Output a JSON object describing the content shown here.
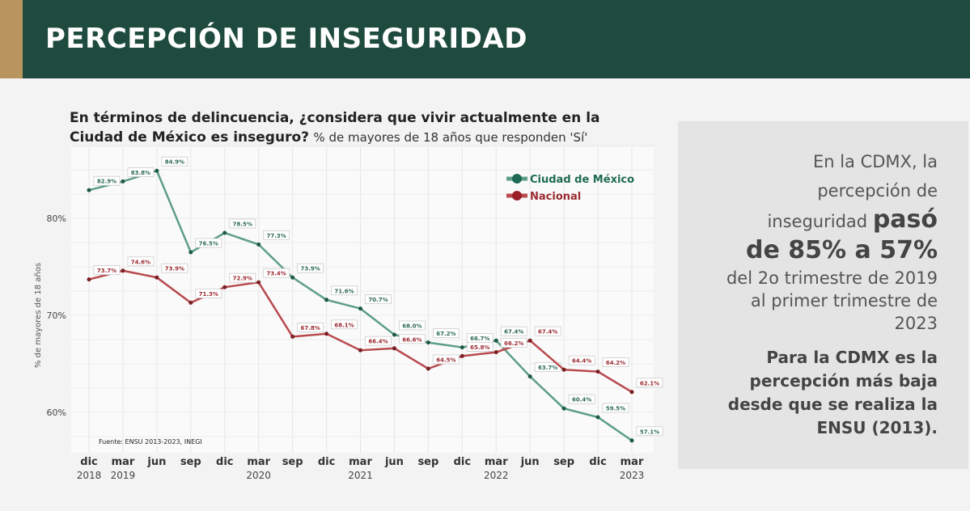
{
  "header": {
    "title": "PERCEPCIÓN DE INSEGURIDAD"
  },
  "question": {
    "bold": "En términos de delincuencia, ¿considera que vivir actualmente en la Ciudad de México es inseguro?",
    "subtitle": "% de mayores de 18 años que responden 'Sí'"
  },
  "chart_data": {
    "type": "line",
    "ylabel": "% de mayores de 18 años",
    "categories": [
      "dic",
      "mar",
      "jun",
      "sep",
      "dic",
      "mar",
      "sep",
      "dic",
      "mar",
      "jun",
      "sep",
      "dic",
      "mar",
      "jun",
      "sep",
      "dic",
      "mar"
    ],
    "years": [
      "2018",
      "2019",
      "",
      "",
      "",
      "2020",
      "",
      "",
      "2021",
      "",
      "",
      "",
      "2022",
      "",
      "",
      "",
      "2023"
    ],
    "yticks": [
      60,
      70,
      80
    ],
    "ylim": [
      55,
      88
    ],
    "grid": true,
    "legend_position": "top-right",
    "source": "Fuente: ENSU 2013-2023, INEGI",
    "series": [
      {
        "name": "Ciudad de México",
        "color": "#5e9e86",
        "values": [
          82.9,
          83.8,
          84.9,
          76.5,
          78.5,
          77.3,
          73.9,
          71.6,
          70.7,
          68.0,
          67.2,
          66.7,
          67.4,
          63.7,
          60.4,
          59.5,
          57.1
        ]
      },
      {
        "name": "Nacional",
        "color": "#b84a4e",
        "values": [
          73.7,
          74.6,
          73.9,
          71.3,
          72.9,
          73.4,
          67.8,
          68.1,
          66.4,
          66.6,
          64.5,
          65.8,
          66.2,
          67.4,
          64.4,
          64.2,
          62.1
        ]
      }
    ]
  },
  "panel": {
    "line1": "En la CDMX, la",
    "line2": "percepción de",
    "line3": "inseguridad",
    "line3b": "pasó",
    "line4": "de 85% a 57%",
    "line5": "del 2o trimestre de 2019",
    "line6": "al primer trimestre de",
    "line7": "2023",
    "note": [
      "Para la CDMX es la",
      "percepción más baja",
      "desde que se realiza la",
      "ENSU (2013)."
    ]
  }
}
